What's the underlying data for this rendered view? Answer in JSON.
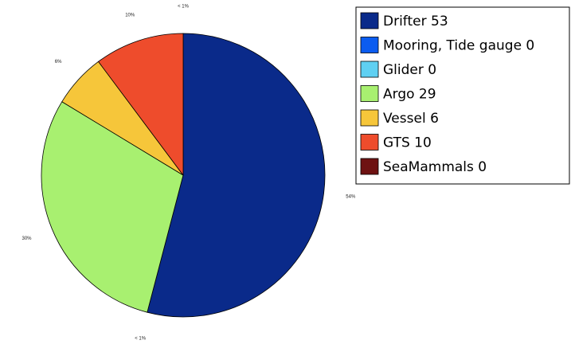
{
  "chart_data": {
    "type": "pie",
    "legend_placement": "top-right",
    "slices": [
      {
        "name": "Drifter",
        "value": 53,
        "label": "54%",
        "color": "#0a2a8a"
      },
      {
        "name": "Mooring, Tide gauge",
        "value": 0,
        "label": "< 1%",
        "color": "#0b5cf0"
      },
      {
        "name": "Glider",
        "value": 0,
        "label": "",
        "color": "#5fd0f2"
      },
      {
        "name": "Argo",
        "value": 29,
        "label": "30%",
        "color": "#a8f070"
      },
      {
        "name": "Vessel",
        "value": 6,
        "label": "6%",
        "color": "#f6c63a"
      },
      {
        "name": "GTS",
        "value": 10,
        "label": "10%",
        "color": "#ee4c2c"
      },
      {
        "name": "SeaMammals",
        "value": 0,
        "label": "< 1%",
        "color": "#6e1212"
      }
    ],
    "legend": [
      "Drifter 53",
      "Mooring, Tide gauge 0",
      "Glider 0",
      "Argo 29",
      "Vessel 6",
      "GTS 10",
      "SeaMammals 0"
    ]
  }
}
